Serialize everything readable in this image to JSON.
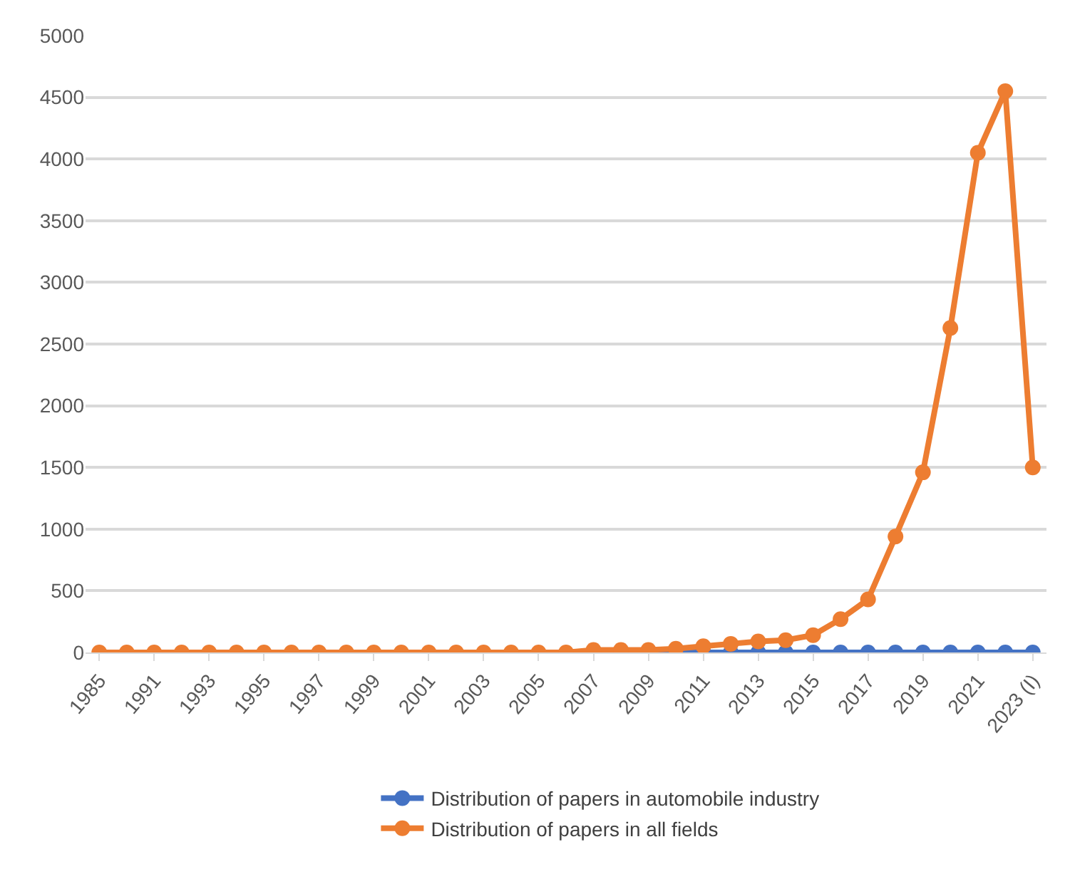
{
  "chart_data": {
    "type": "line",
    "categories": [
      "1985",
      null,
      "1991",
      null,
      "1993",
      null,
      "1995",
      null,
      "1997",
      null,
      "1999",
      null,
      "2001",
      null,
      "2003",
      null,
      "2005",
      null,
      "2007",
      null,
      "2009",
      null,
      "2011",
      null,
      "2013",
      null,
      "2015",
      null,
      "2017",
      null,
      "2019",
      null,
      "2021",
      null,
      "2023 (I)"
    ],
    "series": [
      {
        "name": "Distribution of papers in automobile industry",
        "color": "#4472c4",
        "values": [
          null,
          null,
          null,
          null,
          null,
          null,
          null,
          null,
          null,
          null,
          null,
          null,
          null,
          null,
          null,
          null,
          null,
          null,
          null,
          null,
          0,
          0,
          0,
          0,
          0,
          0,
          0,
          0,
          0,
          0,
          0,
          0,
          0,
          0,
          0
        ]
      },
      {
        "name": "Distribution of papers in all fields",
        "color": "#ed7d31",
        "values": [
          0,
          0,
          0,
          0,
          0,
          0,
          0,
          0,
          0,
          0,
          0,
          0,
          0,
          0,
          0,
          0,
          0,
          0,
          20,
          20,
          20,
          30,
          50,
          70,
          90,
          100,
          140,
          270,
          430,
          940,
          1460,
          2630,
          4050,
          4550,
          1500
        ]
      }
    ],
    "ylim": [
      0,
      5000
    ],
    "yticks": [
      0,
      500,
      1000,
      1500,
      2000,
      2500,
      3000,
      3500,
      4000,
      4500,
      5000
    ],
    "grid": "y",
    "legend": "bottom",
    "marker": "circle",
    "line_style": "solid"
  }
}
